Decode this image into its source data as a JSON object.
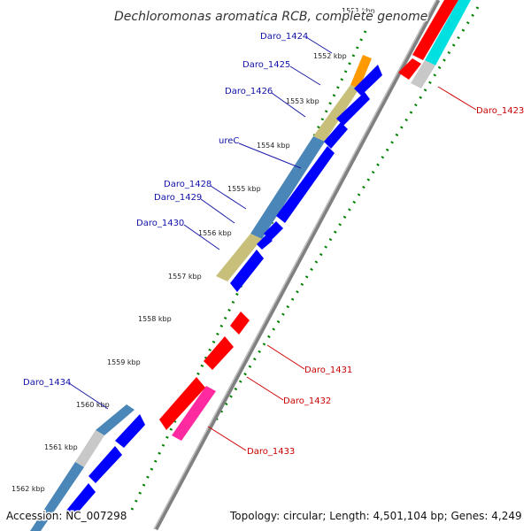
{
  "title": "Dechloromonas aromatica RCB, complete genome",
  "accession_text": "Accession: NC_007298",
  "summary_text": "Topology: circular; Length: 4,501,104 bp; Genes: 4,249",
  "kbp_labels": [
    "1551 kbp",
    "1552 kbp",
    "1553 kbp",
    "1554 kbp",
    "1555 kbp",
    "1556 kbp",
    "1557 kbp",
    "1558 kbp",
    "1559 kbp",
    "1560 kbp",
    "1561 kbp",
    "1562 kbp"
  ],
  "genes_forward": [
    "Daro_1424",
    "Daro_1425",
    "Daro_1426",
    "ureC",
    "Daro_1428",
    "Daro_1429",
    "Daro_1430",
    "Daro_1434"
  ],
  "genes_reverse": [
    "Daro_1423",
    "Daro_1431",
    "Daro_1432",
    "Daro_1433"
  ],
  "colors": {
    "forward_gene": "#0000ff",
    "reverse_gene": "#ff0000",
    "cog_steelblue": "#4a86b8",
    "cog_olive": "#c8c07a",
    "cog_orange": "#ff9900",
    "cog_gray": "#c8c8c8",
    "cog_cyan": "#00e0e0",
    "cog_magenta": "#ff2aa0",
    "backbone": "#808080",
    "gc_dots": "#008000"
  }
}
